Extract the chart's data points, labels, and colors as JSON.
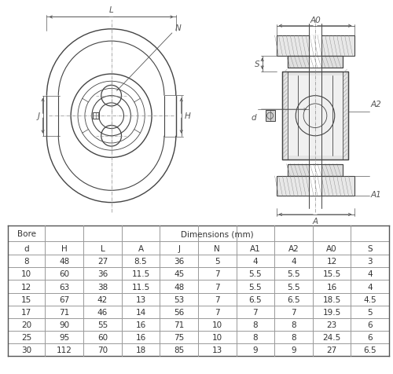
{
  "table_header_row1": [
    "Bore",
    "Dimensions (mm)"
  ],
  "table_header_row2": [
    "d",
    "H",
    "L",
    "A",
    "J",
    "N",
    "A1",
    "A2",
    "A0",
    "S"
  ],
  "table_data": [
    [
      "8",
      "48",
      "27",
      "8.5",
      "36",
      "5",
      "4",
      "4",
      "12",
      "3"
    ],
    [
      "10",
      "60",
      "36",
      "11.5",
      "45",
      "7",
      "5.5",
      "5.5",
      "15.5",
      "4"
    ],
    [
      "12",
      "63",
      "38",
      "11.5",
      "48",
      "7",
      "5.5",
      "5.5",
      "16",
      "4"
    ],
    [
      "15",
      "67",
      "42",
      "13",
      "53",
      "7",
      "6.5",
      "6.5",
      "18.5",
      "4.5"
    ],
    [
      "17",
      "71",
      "46",
      "14",
      "56",
      "7",
      "7",
      "7",
      "19.5",
      "5"
    ],
    [
      "20",
      "90",
      "55",
      "16",
      "71",
      "10",
      "8",
      "8",
      "23",
      "6"
    ],
    [
      "25",
      "95",
      "60",
      "16",
      "75",
      "10",
      "8",
      "8",
      "24.5",
      "6"
    ],
    [
      "30",
      "112",
      "70",
      "18",
      "85",
      "13",
      "9",
      "9",
      "27",
      "6.5"
    ]
  ],
  "bg_color": "#ffffff",
  "text_color": "#333333",
  "draw_color": "#444444",
  "dim_color": "#555555",
  "table_line_color": "#999999",
  "table_border_color": "#555555",
  "font_size_table": 7.5,
  "font_size_dim": 7.5,
  "hatch_color": "#888888"
}
